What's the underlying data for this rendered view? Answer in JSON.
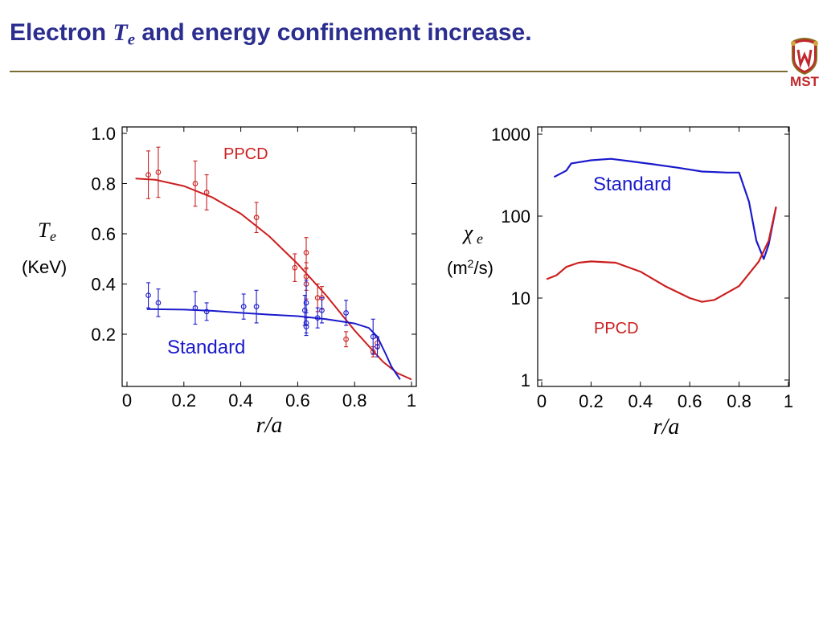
{
  "header": {
    "title_prefix": "Electron ",
    "title_symbol": "T",
    "title_symbol_sub": "e",
    "title_suffix": " and energy confinement increase.",
    "logo_text": "MST",
    "title_color": "#2b2e8f",
    "rule_color": "#7a6a35",
    "logo_color": "#c0282d"
  },
  "chart_data": [
    {
      "type": "line",
      "ylabel_symbol": "T",
      "ylabel_sub": "e",
      "ylabel_units": "(KeV)",
      "xlabel": "r/a",
      "xlim": [
        0,
        1
      ],
      "ylim": [
        0,
        1.0
      ],
      "x_ticks": [
        "0",
        "0.2",
        "0.4",
        "0.6",
        "0.8",
        "1"
      ],
      "y_ticks": [
        "0.2",
        "0.4",
        "0.6",
        "0.8",
        "1.0"
      ],
      "annotations": [
        "PPCD",
        "Standard"
      ],
      "series": [
        {
          "name": "PPCD",
          "color": "#cc1f1f",
          "fit": [
            [
              0.03,
              0.82
            ],
            [
              0.1,
              0.815
            ],
            [
              0.2,
              0.79
            ],
            [
              0.3,
              0.745
            ],
            [
              0.4,
              0.68
            ],
            [
              0.5,
              0.59
            ],
            [
              0.6,
              0.48
            ],
            [
              0.7,
              0.355
            ],
            [
              0.8,
              0.215
            ],
            [
              0.9,
              0.09
            ],
            [
              0.95,
              0.045
            ],
            [
              1.0,
              0.02
            ]
          ],
          "points": [
            {
              "x": 0.075,
              "y": 0.835,
              "err": 0.095
            },
            {
              "x": 0.11,
              "y": 0.845,
              "err": 0.1
            },
            {
              "x": 0.24,
              "y": 0.8,
              "err": 0.09
            },
            {
              "x": 0.28,
              "y": 0.765,
              "err": 0.07
            },
            {
              "x": 0.455,
              "y": 0.665,
              "err": 0.06
            },
            {
              "x": 0.59,
              "y": 0.465,
              "err": 0.055
            },
            {
              "x": 0.63,
              "y": 0.525,
              "err": 0.06
            },
            {
              "x": 0.63,
              "y": 0.43,
              "err": 0.055
            },
            {
              "x": 0.63,
              "y": 0.4,
              "err": 0.06
            },
            {
              "x": 0.67,
              "y": 0.345,
              "err": 0.055
            },
            {
              "x": 0.685,
              "y": 0.345,
              "err": 0.045
            },
            {
              "x": 0.77,
              "y": 0.18,
              "err": 0.03
            },
            {
              "x": 0.865,
              "y": 0.13,
              "err": 0.02
            },
            {
              "x": 0.88,
              "y": 0.165,
              "err": 0.02
            }
          ]
        },
        {
          "name": "Standard",
          "color": "#1a1acc",
          "fit": [
            [
              0.07,
              0.3
            ],
            [
              0.2,
              0.298
            ],
            [
              0.3,
              0.293
            ],
            [
              0.4,
              0.285
            ],
            [
              0.5,
              0.278
            ],
            [
              0.6,
              0.272
            ],
            [
              0.7,
              0.26
            ],
            [
              0.8,
              0.243
            ],
            [
              0.85,
              0.225
            ],
            [
              0.88,
              0.19
            ],
            [
              0.91,
              0.12
            ],
            [
              0.93,
              0.07
            ],
            [
              0.96,
              0.02
            ]
          ],
          "points": [
            {
              "x": 0.075,
              "y": 0.355,
              "err": 0.05
            },
            {
              "x": 0.11,
              "y": 0.325,
              "err": 0.055
            },
            {
              "x": 0.24,
              "y": 0.305,
              "err": 0.065
            },
            {
              "x": 0.28,
              "y": 0.29,
              "err": 0.035
            },
            {
              "x": 0.41,
              "y": 0.31,
              "err": 0.05
            },
            {
              "x": 0.455,
              "y": 0.31,
              "err": 0.065
            },
            {
              "x": 0.625,
              "y": 0.295,
              "err": 0.06
            },
            {
              "x": 0.63,
              "y": 0.325,
              "err": 0.09
            },
            {
              "x": 0.63,
              "y": 0.245,
              "err": 0.04
            },
            {
              "x": 0.63,
              "y": 0.23,
              "err": 0.035
            },
            {
              "x": 0.67,
              "y": 0.265,
              "err": 0.04
            },
            {
              "x": 0.685,
              "y": 0.295,
              "err": 0.05
            },
            {
              "x": 0.77,
              "y": 0.285,
              "err": 0.05
            },
            {
              "x": 0.865,
              "y": 0.19,
              "err": 0.07
            },
            {
              "x": 0.88,
              "y": 0.15,
              "err": 0.04
            }
          ]
        }
      ]
    },
    {
      "type": "line",
      "ylabel_symbol": "χ",
      "ylabel_sub": "e",
      "ylabel_units_prefix": "(m",
      "ylabel_units_sup": "2",
      "ylabel_units_suffix": "/s)",
      "xlabel": "r/a",
      "xlim": [
        0,
        1
      ],
      "ylim": [
        1,
        1000
      ],
      "yscale": "log",
      "x_ticks": [
        "0",
        "0.2",
        "0.4",
        "0.6",
        "0.8",
        "1"
      ],
      "y_ticks": [
        "1",
        "10",
        "100",
        "1000"
      ],
      "annotations": [
        "Standard",
        "PPCD"
      ],
      "series": [
        {
          "name": "Standard",
          "color": "#1a1acc",
          "points": [
            [
              0.05,
              300
            ],
            [
              0.1,
              360
            ],
            [
              0.12,
              440
            ],
            [
              0.2,
              480
            ],
            [
              0.28,
              500
            ],
            [
              0.35,
              470
            ],
            [
              0.45,
              430
            ],
            [
              0.55,
              390
            ],
            [
              0.65,
              350
            ],
            [
              0.75,
              340
            ],
            [
              0.8,
              340
            ],
            [
              0.84,
              150
            ],
            [
              0.87,
              50
            ],
            [
              0.9,
              30
            ],
            [
              0.92,
              45
            ],
            [
              0.95,
              130
            ]
          ]
        },
        {
          "name": "PPCD",
          "color": "#cc1f1f",
          "points": [
            [
              0.02,
              17
            ],
            [
              0.06,
              19
            ],
            [
              0.1,
              24
            ],
            [
              0.15,
              27
            ],
            [
              0.2,
              28
            ],
            [
              0.3,
              27
            ],
            [
              0.4,
              21
            ],
            [
              0.5,
              14
            ],
            [
              0.6,
              10
            ],
            [
              0.65,
              9
            ],
            [
              0.7,
              9.5
            ],
            [
              0.8,
              14
            ],
            [
              0.88,
              28
            ],
            [
              0.92,
              50
            ],
            [
              0.95,
              130
            ]
          ]
        }
      ]
    }
  ]
}
